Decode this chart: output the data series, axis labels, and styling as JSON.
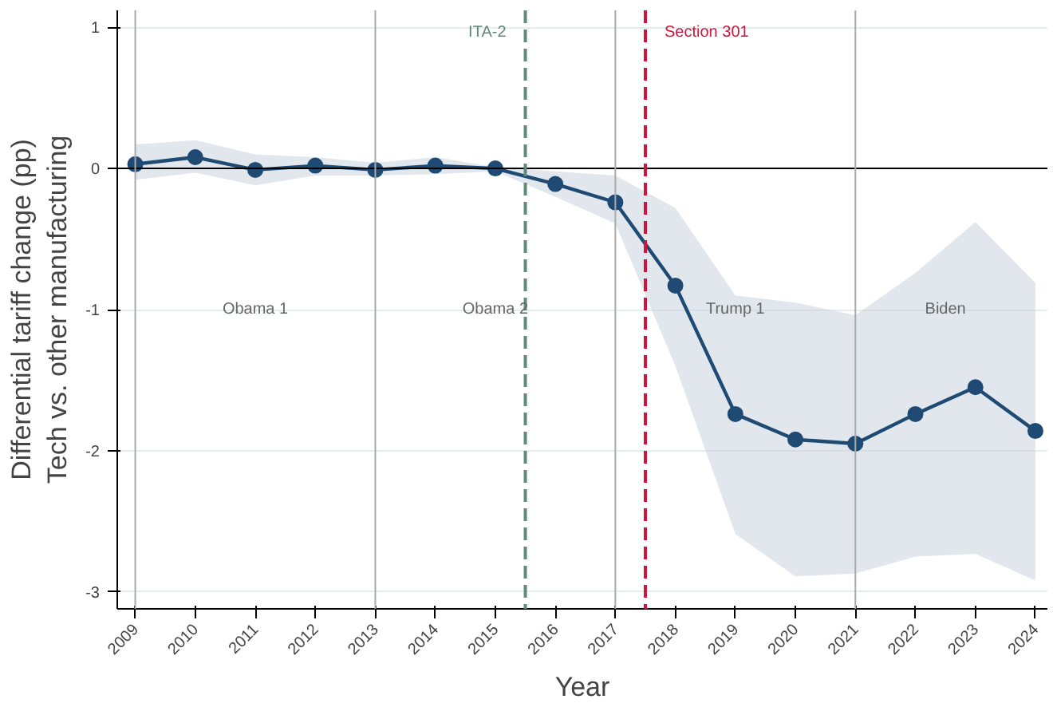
{
  "chart_data": {
    "type": "line",
    "xlabel": "Year",
    "ylabel": "Differential tariff change (pp)\nTech vs. other manufacturing",
    "x": [
      2009,
      2010,
      2011,
      2012,
      2013,
      2014,
      2015,
      2016,
      2017,
      2018,
      2019,
      2020,
      2021,
      2022,
      2023,
      2024
    ],
    "series": [
      {
        "color": "#1f4a73",
        "values": [
          0.03,
          0.08,
          -0.01,
          0.02,
          -0.01,
          0.02,
          0.0,
          -0.11,
          -0.24,
          -0.83,
          -1.74,
          -1.92,
          -1.95,
          -1.74,
          -1.55,
          -1.86
        ],
        "lower": [
          -0.08,
          -0.03,
          -0.12,
          -0.05,
          -0.05,
          -0.04,
          -0.02,
          -0.2,
          -0.39,
          -1.4,
          -2.59,
          -2.89,
          -2.87,
          -2.75,
          -2.73,
          -2.92
        ],
        "upper": [
          0.17,
          0.2,
          0.1,
          0.08,
          0.04,
          0.08,
          0.01,
          -0.02,
          -0.05,
          -0.28,
          -0.9,
          -0.95,
          -1.04,
          -0.74,
          -0.38,
          -0.81
        ]
      }
    ],
    "marker": "circle",
    "line_style": "solid",
    "grid": "y",
    "xlim": [
      2008.7,
      2024.2
    ],
    "ylim": [
      -3.12,
      1.12
    ],
    "xticks": [
      2009,
      2010,
      2011,
      2012,
      2013,
      2014,
      2015,
      2016,
      2017,
      2018,
      2019,
      2020,
      2021,
      2022,
      2023,
      2024
    ],
    "yticks": [
      -3,
      -2,
      -1,
      0,
      1
    ],
    "ref_lines": [
      {
        "axis": "y",
        "value": 0,
        "color": "#000000",
        "line_style": "solid"
      },
      {
        "axis": "x",
        "value": 2009,
        "color": "#aaaaaa",
        "line_style": "solid"
      },
      {
        "axis": "x",
        "value": 2013,
        "color": "#aaaaaa",
        "line_style": "solid"
      },
      {
        "axis": "x",
        "value": 2017,
        "color": "#aaaaaa",
        "line_style": "solid"
      },
      {
        "axis": "x",
        "value": 2021,
        "color": "#aaaaaa",
        "line_style": "solid"
      },
      {
        "axis": "x",
        "value": 2015.5,
        "label": "ITA-2",
        "color": "#5f8a76",
        "line_style": "dashed"
      },
      {
        "axis": "x",
        "value": 2017.5,
        "label": "Section 301",
        "color": "#d0143c",
        "line_style": "dashed"
      }
    ],
    "annotations": [
      "Obama 1",
      "Obama 2",
      "Trump 1",
      "Biden"
    ]
  }
}
